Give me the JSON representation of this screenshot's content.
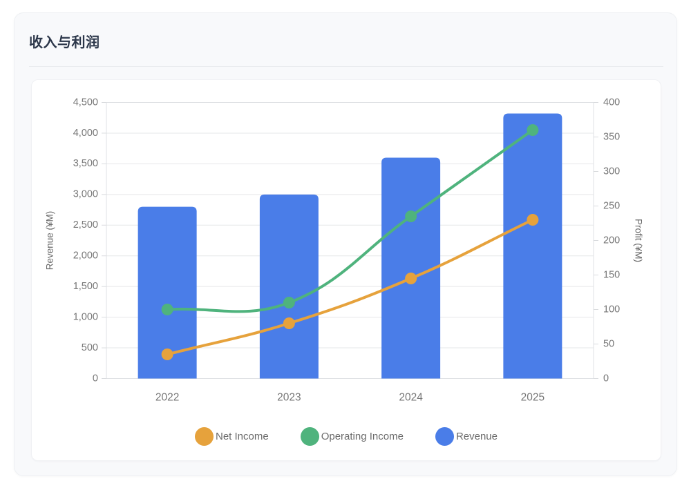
{
  "header": {
    "title": "收入与利润"
  },
  "chart_data": {
    "type": "combo-bar-line",
    "title": "收入与利润",
    "categories": [
      "2022",
      "2023",
      "2024",
      "2025"
    ],
    "series": [
      {
        "name": "Revenue",
        "kind": "bar",
        "axis": "left",
        "color": "#4a7de8",
        "values": [
          2800,
          3000,
          3600,
          4320
        ]
      },
      {
        "name": "Operating Income",
        "kind": "line",
        "axis": "right",
        "color": "#4fb37d",
        "values": [
          100,
          110,
          235,
          360
        ]
      },
      {
        "name": "Net Income",
        "kind": "line",
        "axis": "right",
        "color": "#e6a23c",
        "values": [
          35,
          80,
          145,
          230
        ]
      }
    ],
    "left_axis": {
      "title": "Revenue (¥M)",
      "min": 0,
      "max": 4500,
      "tick_step": 500,
      "tick_labels": [
        "0",
        "500",
        "1,000",
        "1,500",
        "2,000",
        "2,500",
        "3,000",
        "3,500",
        "4,000",
        "4,500"
      ]
    },
    "right_axis": {
      "title": "Profit (¥M)",
      "min": 0,
      "max": 400,
      "tick_step": 50,
      "tick_labels": [
        "0",
        "50",
        "100",
        "150",
        "200",
        "250",
        "300",
        "350",
        "400"
      ]
    },
    "legend": [
      {
        "label": "Net Income",
        "series": "Net Income"
      },
      {
        "label": "Operating Income",
        "series": "Operating Income"
      },
      {
        "label": "Revenue",
        "series": "Revenue"
      }
    ],
    "legend_position": "bottom",
    "grid": true,
    "style": {
      "grid_color": "#e6e7e9",
      "axis_box_color": "#dfe1e4",
      "bottom_axis_color": "#cfd1d4",
      "tick_color": "#d9dbde",
      "tick_text_color": "#767676",
      "axis_title_color": "#666666",
      "x_label_color": "#767676"
    }
  }
}
